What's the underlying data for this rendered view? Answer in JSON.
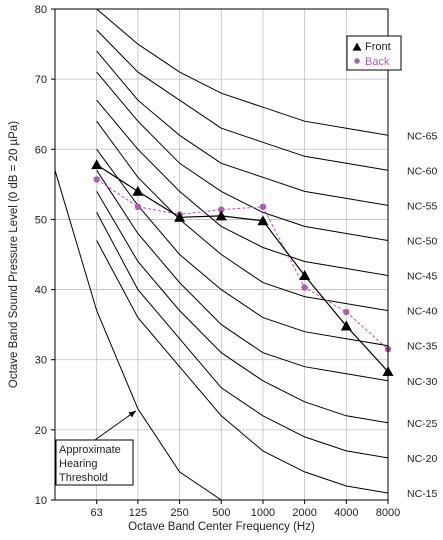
{
  "chart_data": {
    "type": "line",
    "title": "",
    "xlabel": "Octave Band Center Frequency (Hz)",
    "ylabel": "Octave Band Sound Pressure Level (0 dB = 20 µPa)",
    "x_scale": "log",
    "xlim": [
      31.5,
      8000
    ],
    "ylim": [
      10,
      80
    ],
    "x_ticks": [
      63,
      125,
      250,
      500,
      1000,
      2000,
      4000,
      8000
    ],
    "x_tick_labels": [
      "63",
      "125",
      "250",
      "500",
      "1000",
      "2000",
      "4000",
      "8000"
    ],
    "y_ticks": [
      10,
      20,
      30,
      40,
      50,
      60,
      70,
      80
    ],
    "y_tick_labels": [
      "10",
      "20",
      "30",
      "40",
      "50",
      "60",
      "70",
      "80"
    ],
    "grid": true,
    "legend_position": "top-right",
    "colors": {
      "front": "#000000",
      "back": "#b05ab0",
      "curves": "#000000",
      "grid": "#bfbfbf"
    },
    "series": [
      {
        "name": "Front",
        "marker": "triangle",
        "line": "solid",
        "x": [
          63,
          125,
          250,
          500,
          1000,
          2000,
          4000,
          8000
        ],
        "values": [
          57.8,
          54.0,
          50.3,
          50.5,
          49.8,
          42.0,
          34.8,
          28.3
        ]
      },
      {
        "name": "Back",
        "marker": "circle",
        "line": "dashed",
        "x": [
          63,
          125,
          250,
          500,
          1000,
          2000,
          4000,
          8000
        ],
        "values": [
          55.7,
          51.8,
          50.7,
          51.4,
          51.8,
          40.3,
          36.8,
          31.5
        ]
      }
    ],
    "curves": [
      {
        "label": "NC-65",
        "x": [
          63,
          125,
          250,
          500,
          1000,
          2000,
          4000,
          8000
        ],
        "values": [
          80,
          75,
          71,
          68,
          66,
          64,
          63,
          62
        ]
      },
      {
        "label": "NC-60",
        "x": [
          63,
          125,
          250,
          500,
          1000,
          2000,
          4000,
          8000
        ],
        "values": [
          77,
          71,
          67,
          63,
          61,
          59,
          58,
          57
        ]
      },
      {
        "label": "NC-55",
        "x": [
          63,
          125,
          250,
          500,
          1000,
          2000,
          4000,
          8000
        ],
        "values": [
          74,
          67,
          62,
          58,
          56,
          54,
          53,
          52
        ]
      },
      {
        "label": "NC-50",
        "x": [
          63,
          125,
          250,
          500,
          1000,
          2000,
          4000,
          8000
        ],
        "values": [
          71,
          64,
          58,
          54,
          51,
          49,
          48,
          47
        ]
      },
      {
        "label": "NC-45",
        "x": [
          63,
          125,
          250,
          500,
          1000,
          2000,
          4000,
          8000
        ],
        "values": [
          67,
          60,
          54,
          49,
          46,
          44,
          43,
          42
        ]
      },
      {
        "label": "NC-40",
        "x": [
          63,
          125,
          250,
          500,
          1000,
          2000,
          4000,
          8000
        ],
        "values": [
          64,
          56,
          50,
          45,
          41,
          39,
          38,
          37
        ]
      },
      {
        "label": "NC-35",
        "x": [
          63,
          125,
          250,
          500,
          1000,
          2000,
          4000,
          8000
        ],
        "values": [
          60,
          52,
          45,
          40,
          36,
          34,
          33,
          32
        ]
      },
      {
        "label": "NC-30",
        "x": [
          63,
          125,
          250,
          500,
          1000,
          2000,
          4000,
          8000
        ],
        "values": [
          57,
          48,
          41,
          35,
          31,
          29,
          28,
          27
        ]
      },
      {
        "label": "NC-25",
        "x": [
          63,
          125,
          250,
          500,
          1000,
          2000,
          4000,
          8000
        ],
        "values": [
          54,
          44,
          37,
          31,
          27,
          24,
          22,
          21
        ]
      },
      {
        "label": "NC-20",
        "x": [
          63,
          125,
          250,
          500,
          1000,
          2000,
          4000,
          8000
        ],
        "values": [
          51,
          40,
          33,
          26,
          22,
          19,
          17,
          16
        ]
      },
      {
        "label": "NC-15",
        "x": [
          63,
          125,
          250,
          500,
          1000,
          2000,
          4000,
          8000
        ],
        "values": [
          47,
          36,
          29,
          22,
          17,
          14,
          12,
          11
        ]
      }
    ],
    "threshold": {
      "label_lines": [
        "Approximate",
        "Hearing",
        "Threshold"
      ],
      "x": [
        31.5,
        63,
        125,
        250,
        500
      ],
      "values": [
        57,
        37,
        23,
        14,
        10
      ]
    }
  }
}
